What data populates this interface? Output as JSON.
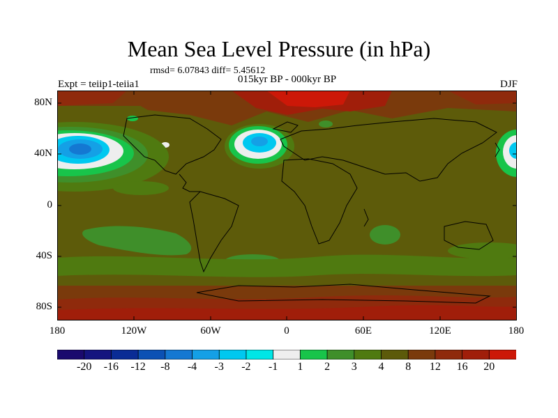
{
  "title": "Mean Sea Level Pressure (in hPa)",
  "stats": "rmsd= 6.07843 diff= 5.45612",
  "subtitle": "015kyr BP - 000kyr BP",
  "left_label": "Expt = teiip1-teiia1",
  "right_label": "DJF",
  "lat_labels": [
    "80N",
    "40N",
    "0",
    "40S",
    "80S"
  ],
  "lon_labels": [
    "180",
    "120W",
    "60W",
    "0",
    "60E",
    "120E",
    "180"
  ],
  "colorbar": {
    "labels": [
      "-20",
      "-16",
      "-12",
      "-8",
      "-4",
      "-3",
      "-2",
      "-1",
      "1",
      "2",
      "3",
      "4",
      "8",
      "12",
      "16",
      "20"
    ],
    "colors": [
      "#1a0a6e",
      "#14147f",
      "#0a2c95",
      "#0b51b4",
      "#1478d2",
      "#14a0e6",
      "#00c8f0",
      "#00e6e6",
      "#eeeeee",
      "#18c44a",
      "#3f8f2a",
      "#4f7a10",
      "#5c5a0a",
      "#7a3a0c",
      "#8f2a0c",
      "#a01e0a",
      "#cc1808"
    ]
  },
  "map": {
    "background_color": "#5d5b0a",
    "regions": [
      {
        "name": "north-pacific-low",
        "levels": [
          "#4f7a10",
          "#18c44a",
          "#eeeeee",
          "#00c8f0",
          "#14a0e6",
          "#1478d2"
        ]
      },
      {
        "name": "north-atlantic-low",
        "levels": [
          "#18c44a",
          "#eeeeee",
          "#00c8f0",
          "#14a0e6"
        ]
      },
      {
        "name": "south-pacific-band",
        "levels": [
          "#4f7a10",
          "#3f8f2a"
        ]
      },
      {
        "name": "south-indian-ocean",
        "levels": [
          "#4f7a10",
          "#3f8f2a"
        ]
      },
      {
        "name": "arctic-high",
        "levels": [
          "#7a3a0c",
          "#a01e0a",
          "#cc1808"
        ]
      },
      {
        "name": "antarctic-high",
        "levels": [
          "#7a3a0c",
          "#8f2a0c",
          "#a01e0a"
        ]
      }
    ]
  }
}
